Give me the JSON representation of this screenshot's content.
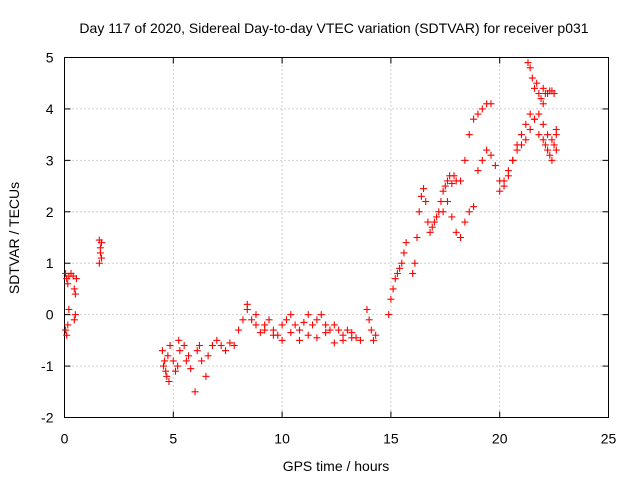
{
  "chart_data": {
    "type": "scatter",
    "title": "Day 117 of 2020, Sidereal Day-to-day VTEC variation (SDTVAR) for receiver p031",
    "xlabel": "GPS time / hours",
    "ylabel": "SDTVAR / TECUs",
    "xlim": [
      0,
      25
    ],
    "ylim": [
      -2,
      5
    ],
    "xticks": [
      "0",
      "5",
      "10",
      "15",
      "20",
      "25"
    ],
    "yticks": [
      "-2",
      "-1",
      "0",
      "1",
      "2",
      "3",
      "4",
      "5"
    ],
    "grid": true,
    "marker": "plus",
    "color": "#ff0000",
    "series": [
      {
        "name": "SDTVAR",
        "x": [
          0.05,
          0.1,
          0.15,
          0.2,
          0.05,
          0.1,
          0.15,
          0.2,
          0.3,
          0.4,
          0.45,
          0.5,
          0.5,
          0.45,
          0.55,
          1.6,
          1.65,
          1.7,
          1.6,
          1.65,
          1.7,
          4.5,
          4.6,
          4.7,
          4.8,
          4.55,
          4.65,
          4.75,
          4.85,
          5.0,
          5.2,
          5.3,
          5.1,
          5.25,
          5.5,
          5.7,
          5.6,
          5.8,
          6.0,
          6.1,
          6.2,
          6.3,
          6.5,
          6.6,
          6.8,
          7.0,
          7.2,
          7.4,
          7.6,
          7.8,
          8.0,
          8.2,
          8.4,
          8.6,
          8.8,
          9.0,
          9.2,
          9.4,
          9.6,
          9.8,
          10.0,
          10.2,
          10.4,
          10.6,
          10.8,
          11.0,
          11.2,
          11.4,
          11.6,
          11.8,
          12.0,
          12.2,
          12.4,
          12.6,
          12.8,
          13.0,
          13.2,
          13.4,
          13.6,
          8.4,
          8.8,
          9.2,
          9.6,
          10.0,
          10.4,
          10.8,
          11.2,
          11.6,
          12.0,
          12.4,
          12.8,
          13.2,
          13.9,
          14.0,
          14.1,
          14.2,
          14.3,
          14.9,
          15.0,
          15.1,
          15.2,
          15.3,
          15.4,
          15.5,
          15.6,
          15.7,
          16.0,
          16.1,
          16.2,
          16.3,
          16.4,
          16.5,
          16.6,
          16.7,
          16.8,
          16.9,
          17.0,
          17.1,
          17.2,
          17.3,
          17.4,
          17.5,
          17.6,
          17.7,
          17.8,
          17.9,
          18.0,
          17.4,
          17.6,
          17.8,
          18.0,
          18.2,
          18.4,
          18.6,
          18.8,
          18.2,
          18.4,
          18.6,
          18.8,
          19.0,
          19.2,
          19.4,
          19.6,
          19.0,
          19.2,
          19.4,
          19.6,
          19.8,
          20.0,
          20.2,
          20.4,
          20.6,
          20.8,
          21.0,
          21.2,
          21.4,
          21.6,
          21.8,
          22.0,
          20.0,
          20.2,
          20.4,
          20.6,
          20.8,
          21.0,
          21.2,
          21.4,
          21.6,
          21.8,
          22.0,
          22.2,
          22.4,
          22.6,
          21.3,
          21.4,
          21.5,
          21.6,
          21.7,
          21.8,
          21.9,
          22.0,
          22.1,
          22.2,
          22.3,
          22.4,
          22.5,
          22.6,
          22.0,
          22.1,
          22.2,
          22.3,
          22.4,
          22.5,
          22.6
        ],
        "y": [
          0.8,
          0.7,
          0.6,
          0.75,
          -0.3,
          -0.4,
          -0.2,
          0.1,
          0.8,
          0.75,
          0.5,
          0.4,
          0.0,
          -0.1,
          0.7,
          1.45,
          1.3,
          1.1,
          1.0,
          1.2,
          1.4,
          -0.7,
          -0.9,
          -1.2,
          -1.3,
          -1.0,
          -1.1,
          -0.8,
          -0.6,
          -0.9,
          -1.0,
          -0.7,
          -1.1,
          -0.5,
          -0.6,
          -0.8,
          -0.9,
          -1.05,
          -1.5,
          -0.7,
          -0.6,
          -0.9,
          -1.2,
          -0.8,
          -0.6,
          -0.5,
          -0.6,
          -0.7,
          -0.55,
          -0.6,
          -0.3,
          -0.1,
          0.1,
          -0.1,
          -0.2,
          -0.35,
          -0.2,
          -0.1,
          -0.3,
          -0.4,
          -0.2,
          -0.1,
          0.0,
          -0.2,
          -0.3,
          -0.15,
          0.0,
          -0.2,
          -0.1,
          0.0,
          -0.2,
          -0.3,
          -0.2,
          -0.3,
          -0.4,
          -0.3,
          -0.35,
          -0.45,
          -0.5,
          0.2,
          0.0,
          -0.3,
          -0.4,
          -0.5,
          -0.35,
          -0.5,
          -0.4,
          -0.45,
          -0.35,
          -0.55,
          -0.5,
          -0.45,
          0.1,
          -0.1,
          -0.3,
          -0.5,
          -0.4,
          0.0,
          0.3,
          0.5,
          0.7,
          0.8,
          0.9,
          1.0,
          1.2,
          1.4,
          0.8,
          1.0,
          1.5,
          2.0,
          2.3,
          2.45,
          2.2,
          1.8,
          1.6,
          1.7,
          1.8,
          1.9,
          2.0,
          2.2,
          2.4,
          2.5,
          2.6,
          2.7,
          2.55,
          2.7,
          2.6,
          2.0,
          2.2,
          1.9,
          1.6,
          1.5,
          1.8,
          2.0,
          2.1,
          2.6,
          3.0,
          3.5,
          3.8,
          3.9,
          4.0,
          4.1,
          4.1,
          2.8,
          3.0,
          3.2,
          3.1,
          2.9,
          2.6,
          2.5,
          2.7,
          3.0,
          3.3,
          3.5,
          3.7,
          3.9,
          3.8,
          3.5,
          3.4,
          2.4,
          2.6,
          2.8,
          3.0,
          3.2,
          3.3,
          3.4,
          3.6,
          3.8,
          3.9,
          3.7,
          3.5,
          3.4,
          3.5,
          4.9,
          4.8,
          4.6,
          4.4,
          4.5,
          4.3,
          4.2,
          4.1,
          3.3,
          3.2,
          3.1,
          3.0,
          3.3,
          3.6,
          4.4,
          4.3,
          4.3,
          4.35,
          4.35,
          4.3,
          3.2
        ]
      }
    ]
  }
}
